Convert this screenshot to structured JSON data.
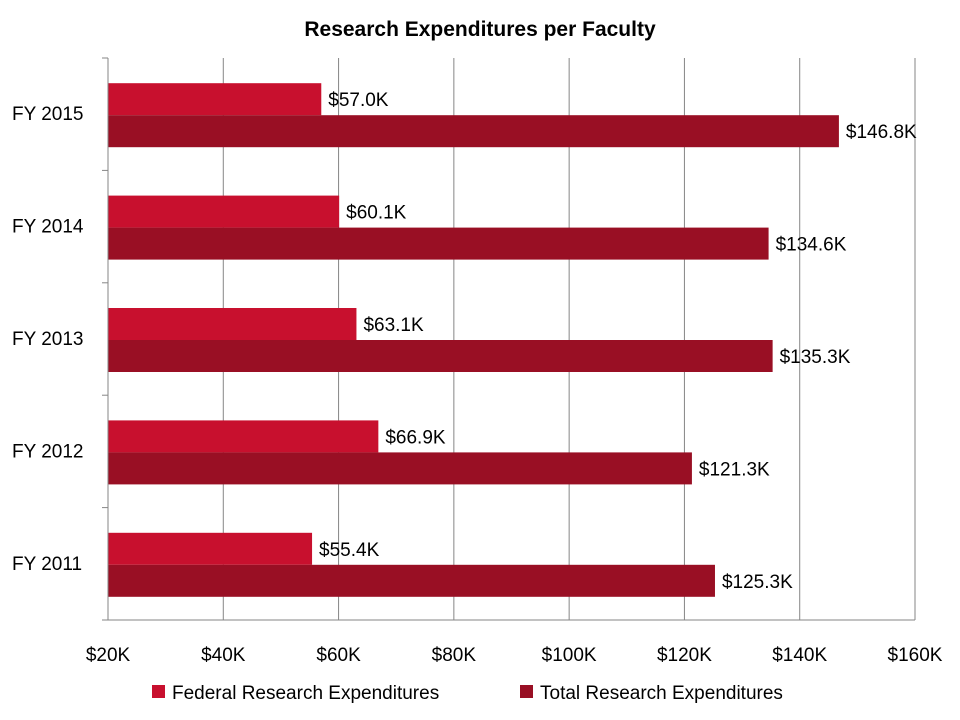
{
  "chart_data": {
    "type": "bar",
    "orientation": "horizontal",
    "title": "Research Expenditures per Faculty",
    "xlabel": "",
    "ylabel": "",
    "categories": [
      "FY 2015",
      "FY 2014",
      "FY 2013",
      "FY 2012",
      "FY 2011"
    ],
    "series": [
      {
        "name": "Federal Research Expenditures",
        "color": "#C8102E",
        "values": [
          57.0,
          60.1,
          63.1,
          66.9,
          55.4
        ],
        "labels": [
          "$57.0K",
          "$60.1K",
          "$63.1K",
          "$66.9K",
          "$55.4K"
        ]
      },
      {
        "name": "Total Research Expenditures",
        "color": "#990F24",
        "values": [
          146.8,
          134.6,
          135.3,
          121.3,
          125.3
        ],
        "labels": [
          "$146.8K",
          "$134.6K",
          "$135.3K",
          "$121.3K",
          "$125.3K"
        ]
      }
    ],
    "xlim": [
      20,
      160
    ],
    "xticks": [
      20,
      40,
      60,
      80,
      100,
      120,
      140,
      160
    ],
    "xtick_labels": [
      "$20K",
      "$40K",
      "$60K",
      "$80K",
      "$100K",
      "$120K",
      "$140K",
      "$160K"
    ],
    "grid": "vertical",
    "legend": "bottom"
  }
}
